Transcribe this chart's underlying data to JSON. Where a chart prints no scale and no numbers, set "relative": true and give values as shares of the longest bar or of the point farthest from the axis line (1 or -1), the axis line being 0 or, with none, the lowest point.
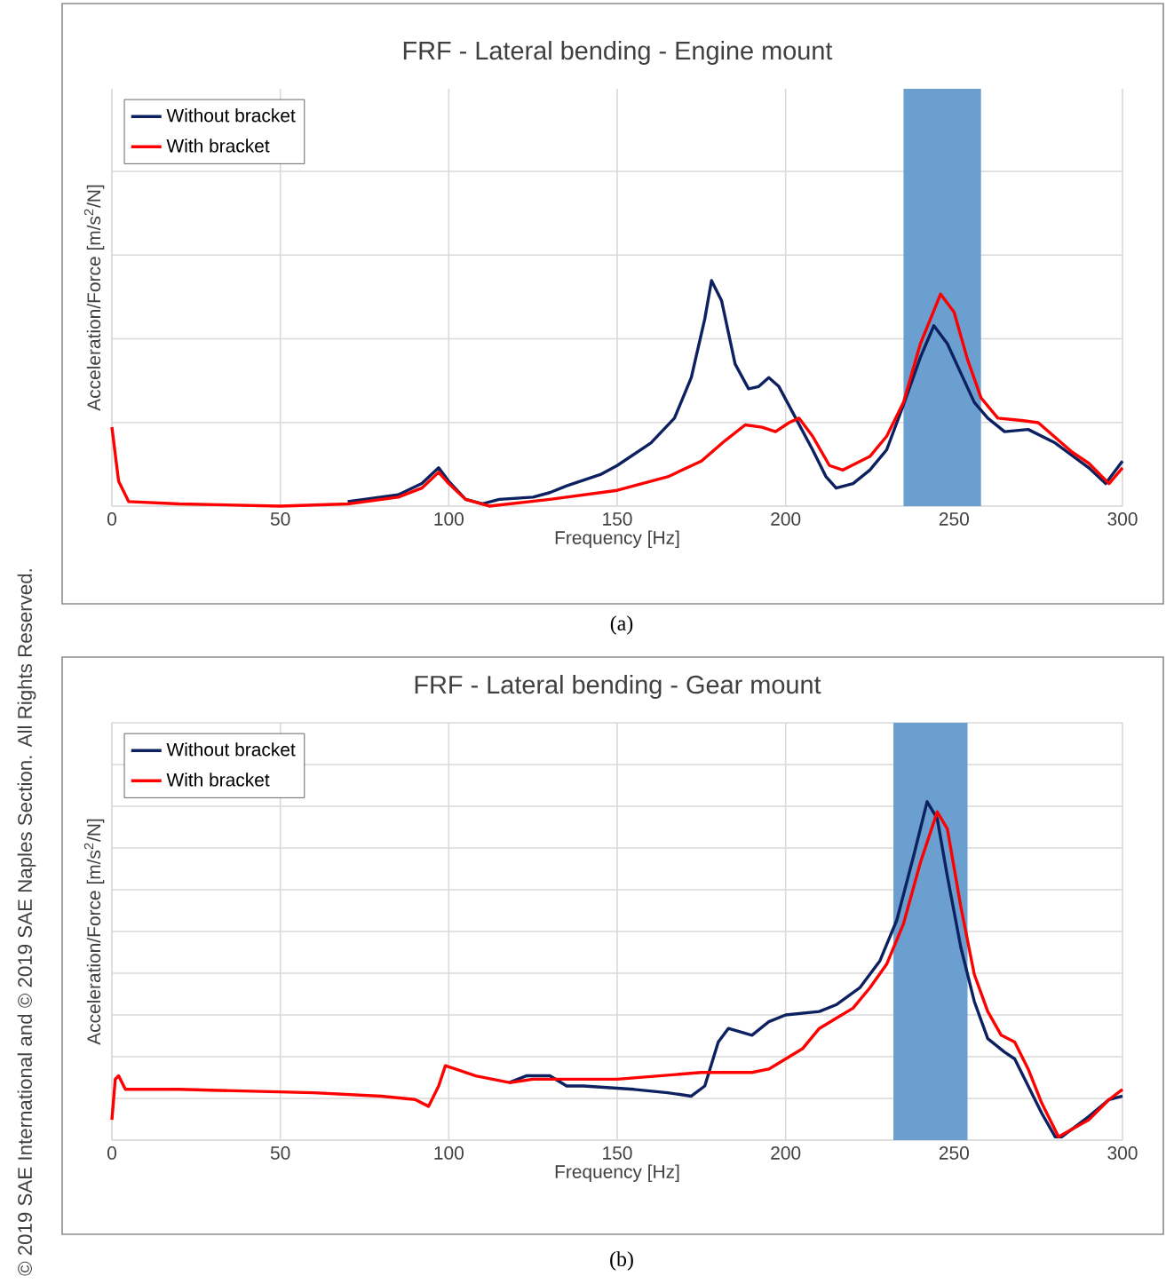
{
  "chart_data": [
    {
      "type": "line",
      "title": "FRF - Lateral bending - Engine mount",
      "xlabel": "Frequency [Hz]",
      "ylabel": "Acceleration/Force [m/s$^{2}$/N]",
      "relative": true,
      "xlim": [
        0,
        300
      ],
      "xticks": [
        0,
        50,
        100,
        150,
        200,
        250,
        300
      ],
      "grid": true,
      "legend": "top left",
      "bands": [
        {
          "axis": "x",
          "from": 235,
          "to": 258,
          "color": "#6a9fd0"
        }
      ],
      "annotations": [
        "(a)",
        "© 2019 SAE International and © 2019 SAE Naples Section. All Rights Reserved."
      ],
      "series": [
        {
          "name": "Without bracket",
          "color": "#0d2160",
          "x": [
            70,
            85,
            92,
            97,
            100,
            105,
            110,
            115,
            125,
            130,
            135,
            145,
            150,
            160,
            167,
            172,
            176,
            178,
            181,
            185,
            189,
            192,
            195,
            198,
            203,
            208,
            212,
            215,
            220,
            225,
            230,
            235,
            240,
            244,
            248,
            252,
            256,
            260,
            265,
            272,
            280,
            290,
            295,
            300
          ],
          "values": [
            0.02,
            0.05,
            0.1,
            0.17,
            0.11,
            0.03,
            0.01,
            0.03,
            0.04,
            0.06,
            0.09,
            0.14,
            0.18,
            0.28,
            0.39,
            0.57,
            0.83,
            1.0,
            0.91,
            0.63,
            0.52,
            0.53,
            0.57,
            0.53,
            0.39,
            0.25,
            0.13,
            0.08,
            0.1,
            0.16,
            0.25,
            0.45,
            0.66,
            0.8,
            0.72,
            0.59,
            0.46,
            0.39,
            0.33,
            0.34,
            0.28,
            0.17,
            0.1,
            0.2
          ]
        },
        {
          "name": "With bracket",
          "color": "#ff0000",
          "x": [
            0,
            2,
            5,
            20,
            50,
            70,
            85,
            92,
            97,
            100,
            105,
            112,
            130,
            150,
            165,
            175,
            182,
            188,
            193,
            197,
            201,
            204,
            208,
            213,
            217,
            225,
            230,
            235,
            240,
            246,
            250,
            254,
            258,
            263,
            270,
            275,
            285,
            290,
            296,
            300
          ],
          "values": [
            0.35,
            0.11,
            0.02,
            0.01,
            0,
            0.01,
            0.04,
            0.08,
            0.15,
            0.1,
            0.03,
            0,
            0.03,
            0.07,
            0.13,
            0.2,
            0.29,
            0.36,
            0.35,
            0.33,
            0.37,
            0.39,
            0.31,
            0.18,
            0.16,
            0.22,
            0.31,
            0.46,
            0.72,
            0.94,
            0.86,
            0.65,
            0.48,
            0.39,
            0.38,
            0.37,
            0.24,
            0.19,
            0.1,
            0.17
          ]
        }
      ]
    },
    {
      "type": "line",
      "title": "FRF - Lateral bending - Gear mount",
      "xlabel": "Frequency [Hz]",
      "ylabel": "Acceleration/Force [m/s$^{2}$/N]",
      "relative": true,
      "xlim": [
        0,
        300
      ],
      "xticks": [
        0,
        50,
        100,
        150,
        200,
        250,
        300
      ],
      "grid": true,
      "legend": "top left",
      "bands": [
        {
          "axis": "x",
          "from": 232,
          "to": 254,
          "color": "#6a9fd0"
        }
      ],
      "annotations": [
        "(b)"
      ],
      "series": [
        {
          "name": "Without bracket",
          "color": "#0d2160",
          "x": [
            118,
            123,
            130,
            135,
            140,
            155,
            165,
            172,
            176,
            180,
            183,
            190,
            195,
            200,
            210,
            215,
            222,
            228,
            233,
            238,
            242,
            245,
            248,
            252,
            256,
            260,
            265,
            268,
            272,
            276,
            280,
            282,
            290,
            296,
            300
          ],
          "values": [
            0.17,
            0.19,
            0.19,
            0.16,
            0.16,
            0.15,
            0.14,
            0.13,
            0.16,
            0.29,
            0.33,
            0.31,
            0.35,
            0.37,
            0.38,
            0.4,
            0.45,
            0.53,
            0.65,
            0.84,
            1.0,
            0.95,
            0.78,
            0.57,
            0.41,
            0.3,
            0.26,
            0.24,
            0.16,
            0.08,
            0.01,
            0.01,
            0.07,
            0.12,
            0.13
          ]
        },
        {
          "name": "With bracket",
          "color": "#ff0000",
          "x": [
            0,
            1,
            2,
            4,
            20,
            60,
            80,
            90,
            94,
            97,
            99,
            102,
            108,
            118,
            125,
            130,
            150,
            175,
            190,
            195,
            200,
            205,
            210,
            215,
            220,
            225,
            230,
            235,
            240,
            245,
            248,
            252,
            256,
            260,
            264,
            268,
            272,
            276,
            281,
            290,
            296,
            300
          ],
          "values": [
            0.06,
            0.18,
            0.19,
            0.15,
            0.15,
            0.14,
            0.13,
            0.12,
            0.1,
            0.16,
            0.22,
            0.21,
            0.19,
            0.17,
            0.18,
            0.18,
            0.18,
            0.2,
            0.2,
            0.21,
            0.24,
            0.27,
            0.33,
            0.36,
            0.39,
            0.45,
            0.52,
            0.64,
            0.82,
            0.97,
            0.92,
            0.69,
            0.49,
            0.38,
            0.31,
            0.29,
            0.21,
            0.11,
            0.01,
            0.06,
            0.12,
            0.15
          ]
        }
      ]
    }
  ]
}
